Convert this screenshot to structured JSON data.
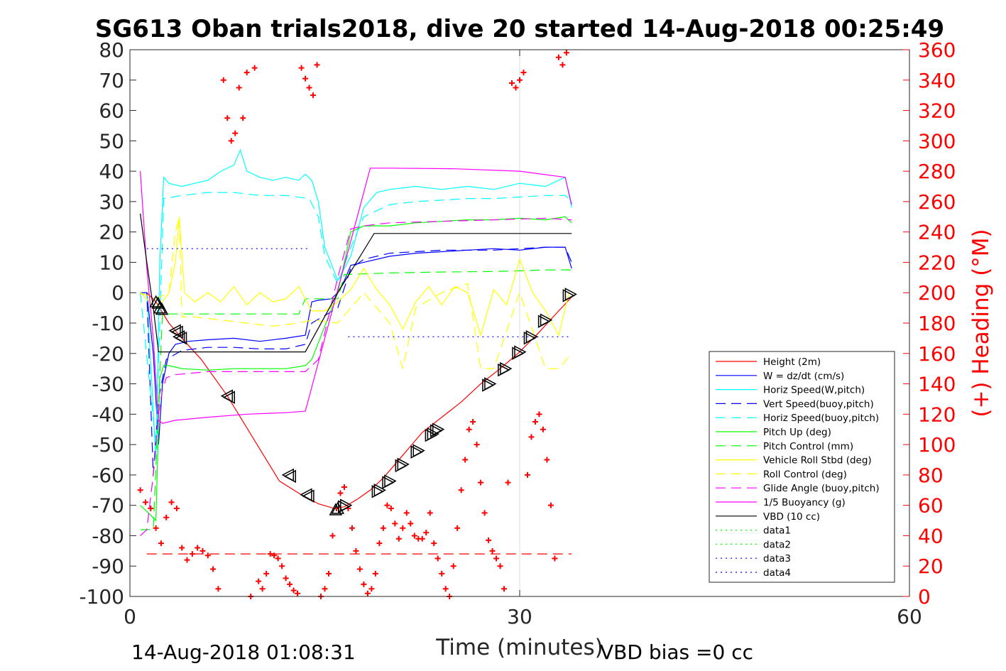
{
  "chart_data": {
    "type": "line",
    "title": "SG613 Oban trials2018, dive 20 started 14-Aug-2018 00:25:49",
    "xlabel": "Time (minutes)",
    "ylabel_right": "(+) Heading (°M)",
    "xlim": [
      0,
      60
    ],
    "ylim": [
      -100,
      80
    ],
    "ylim_right": [
      0,
      360
    ],
    "xticks": [
      "0",
      "30",
      "60"
    ],
    "yticks_left": [
      "80",
      "70",
      "60",
      "50",
      "40",
      "30",
      "20",
      "10",
      "0",
      "-10",
      "-20",
      "-30",
      "-40",
      "-50",
      "-60",
      "-70",
      "-80",
      "-90",
      "-100"
    ],
    "yticks_right": [
      "360",
      "340",
      "320",
      "300",
      "280",
      "260",
      "240",
      "220",
      "200",
      "180",
      "160",
      "140",
      "120",
      "100",
      "80",
      "60",
      "40",
      "20",
      "0"
    ],
    "grid": "vertical line at x=30",
    "legend_position": "lower-right",
    "footer_left": "14-Aug-2018 01:08:31",
    "footer_right": "VBD bias =0 cc",
    "colors": {
      "height": "#ff0000",
      "w": "#0000ff",
      "horiz": "#00ffff",
      "pitch": "#00ff00",
      "roll": "#ffff00",
      "glide": "#ff00ff",
      "buoy": "#ff00ff",
      "vbd": "#000000",
      "heading": "#ff0000",
      "data": "#00ff00",
      "data34": "#0000ff"
    },
    "series": [
      {
        "name": "Height (2m)",
        "style": "solid",
        "color": "#ff0000",
        "x": [
          1.3,
          2,
          3,
          4,
          5.5,
          7.5,
          9.5,
          11.5,
          13,
          14.5,
          15.7,
          16.5,
          17.5,
          18.5,
          19.5,
          20.5,
          21.5,
          22.5,
          24,
          25.5,
          27,
          28.5,
          30,
          31.5,
          33,
          34.1
        ],
        "y": [
          0,
          -3,
          -10,
          -15,
          -22,
          -34,
          -48,
          -62,
          -66,
          -69.5,
          -71,
          -70.5,
          -68,
          -65,
          -61,
          -56,
          -51,
          -46,
          -41,
          -36,
          -30,
          -25,
          -19.5,
          -13,
          -6,
          -1
        ]
      },
      {
        "name": "W = dz/dt (cm/s)",
        "style": "solid",
        "color": "#0000ff",
        "x": [
          0.8,
          1.3,
          1.8,
          2.2,
          2.5,
          3,
          3.5,
          4.5,
          6,
          8,
          10,
          12,
          13.5,
          14,
          14.5,
          15.5,
          16,
          16.5,
          17,
          18,
          20,
          22,
          24,
          26,
          28,
          30,
          32,
          33.5,
          34
        ],
        "y": [
          0,
          0,
          -20,
          -50,
          -30,
          -20,
          -17,
          -16,
          -15.5,
          -15,
          -16,
          -15,
          -14,
          -3,
          -2.5,
          -2,
          0,
          4,
          9,
          10,
          12,
          13,
          13.5,
          14,
          14.5,
          14,
          15,
          15,
          8
        ]
      },
      {
        "name": "Horiz Speed(W,pitch)",
        "style": "solid",
        "color": "#00ffff",
        "x": [
          0.8,
          1.3,
          2,
          2.3,
          2.6,
          3,
          4,
          5,
          6,
          7,
          8,
          8.5,
          9,
          10,
          11,
          12,
          13,
          13.5,
          14,
          14.5,
          15,
          16,
          17,
          18,
          19,
          20,
          22,
          24,
          26,
          28,
          30,
          32,
          33.5,
          34
        ],
        "y": [
          0,
          0,
          -55,
          10,
          38,
          36,
          35,
          36,
          37,
          40,
          42,
          47,
          40,
          38,
          37,
          38,
          37,
          39,
          37,
          30,
          15,
          4,
          12,
          28,
          33,
          34,
          35,
          34,
          35,
          34,
          36,
          35,
          38,
          28
        ]
      },
      {
        "name": "Vert Speed(buoy,pitch)",
        "style": "dash",
        "color": "#0000ff",
        "x": [
          0.8,
          1.3,
          1.8,
          2.2,
          2.8,
          4,
          6,
          8,
          10,
          12,
          13.5,
          14,
          16,
          17,
          18,
          20,
          22,
          24,
          26,
          28,
          30,
          32,
          33.5,
          34
        ],
        "y": [
          0,
          0,
          -60,
          -35,
          -22,
          -19,
          -18,
          -18,
          -18.5,
          -18.5,
          -17,
          -10,
          -5,
          8,
          11,
          13,
          13.5,
          14,
          14,
          14,
          14.5,
          15,
          15,
          10
        ]
      },
      {
        "name": "Horiz Speed(buoy,pitch)",
        "style": "dash",
        "color": "#00ffff",
        "x": [
          0.8,
          2,
          2.6,
          4,
          6,
          8,
          10,
          12,
          13.8,
          14.5,
          15,
          16,
          17,
          18,
          20,
          22,
          24,
          26,
          28,
          30,
          32,
          33.5,
          34
        ],
        "y": [
          0,
          -50,
          31,
          32,
          33,
          33,
          32,
          32,
          31,
          25,
          12,
          3,
          15,
          25,
          29,
          30,
          30.5,
          31,
          31,
          31.5,
          32,
          32,
          30
        ]
      },
      {
        "name": "Pitch Up (deg)",
        "style": "solid",
        "color": "#00ff00",
        "x": [
          0.8,
          1.3,
          2,
          2.3,
          2.6,
          3,
          4,
          6,
          8,
          10,
          12,
          13.5,
          14,
          16,
          17,
          18,
          20,
          22,
          24,
          26,
          28,
          30,
          32,
          33.5,
          34
        ],
        "y": [
          -70,
          -72,
          -75,
          -28,
          -24,
          -24,
          -25,
          -25.5,
          -25,
          -25,
          -25,
          -24,
          -22,
          0,
          20,
          22,
          22,
          23,
          23.5,
          24,
          24,
          24.5,
          24,
          25,
          23
        ]
      },
      {
        "name": "Pitch Control (mm)",
        "style": "dash",
        "color": "#00ff00",
        "x": [
          0.8,
          1.8,
          2.5,
          3,
          6,
          10,
          13,
          13.5,
          16,
          16.5,
          20,
          24,
          28,
          30,
          32,
          34
        ],
        "y": [
          -78,
          -78,
          -7,
          -7,
          -7,
          -7,
          -7,
          -2,
          -2,
          6,
          6.5,
          6.8,
          7,
          7.2,
          7.5,
          7.5
        ]
      },
      {
        "name": "Vehicle Roll Stbd (deg)",
        "style": "solid",
        "color": "#ffff00",
        "x": [
          0.8,
          1.3,
          2,
          2.5,
          3,
          3.5,
          3.8,
          4.2,
          5,
          6,
          7,
          8,
          9,
          10,
          11,
          12,
          13,
          14,
          15,
          16,
          17,
          18,
          19,
          20,
          21,
          22,
          23,
          24,
          25,
          26,
          27,
          28,
          29,
          30,
          31,
          32,
          33,
          33.8
        ],
        "y": [
          0,
          -2,
          -5,
          -3,
          0,
          10,
          25,
          0,
          -3,
          0,
          -3,
          2,
          -4,
          0,
          -3,
          -2,
          2,
          -6,
          -6,
          -3,
          1,
          8,
          1,
          -4,
          -12,
          -3,
          2,
          -4,
          2,
          0,
          -14,
          1,
          -4,
          11,
          0,
          -6,
          -14,
          0
        ]
      },
      {
        "name": "Roll Control (deg)",
        "style": "dash",
        "color": "#ffff00",
        "x": [
          0.8,
          2,
          3,
          3.5,
          3.8,
          4,
          5,
          7,
          9,
          11,
          13,
          14,
          16,
          18,
          19,
          20,
          21,
          22,
          24,
          26,
          27,
          28,
          30,
          32,
          33,
          34
        ],
        "y": [
          0,
          -2,
          0,
          20,
          25,
          -8,
          -8,
          -9,
          -10,
          -11,
          -10,
          -9,
          -10,
          0,
          -5,
          -10,
          -25,
          -5,
          0,
          3,
          -25,
          -25,
          0,
          -25,
          -25,
          -20
        ]
      },
      {
        "name": "Glide Angle (buoy,pitch)",
        "style": "dash",
        "color": "#ff00ff",
        "x": [
          0.8,
          1.3,
          1.8,
          2.2,
          2.5,
          2.8,
          3.5,
          6,
          10,
          13.5,
          14.5,
          16,
          17,
          18,
          20,
          24,
          28,
          32,
          34
        ],
        "y": [
          -80,
          -78,
          -60,
          -40,
          -32,
          -28,
          -27,
          -26,
          -26,
          -26,
          -22,
          5,
          21,
          22,
          23,
          23.5,
          24,
          24.5,
          24
        ]
      },
      {
        "name": "1/5 Buoyancy (g)",
        "style": "solid",
        "color": "#ff00ff",
        "x": [
          0.8,
          1.3,
          1.8,
          2.2,
          2.5,
          3.5,
          6,
          9,
          12,
          13.5,
          18.5,
          20,
          25,
          30,
          33.5,
          34
        ],
        "y": [
          40,
          8,
          -15,
          -42,
          -43,
          -42,
          -41,
          -40,
          -39.5,
          -39,
          41,
          41,
          40.8,
          40,
          38,
          29
        ]
      },
      {
        "name": "VBD (10 cc)",
        "style": "solid",
        "color": "#000000",
        "x": [
          0.8,
          1.3,
          1.8,
          2.2,
          3,
          6,
          10,
          13.5,
          16,
          18.8,
          20,
          25,
          30,
          33,
          34
        ],
        "y": [
          26,
          10,
          -5,
          -19.5,
          -19.5,
          -19.5,
          -19.5,
          -19.5,
          0,
          19.5,
          19.5,
          19.5,
          19.5,
          19.5,
          19.5
        ]
      },
      {
        "name": "data1",
        "style": "dot",
        "color": "#00ff00",
        "x": [],
        "y": []
      },
      {
        "name": "data2",
        "style": "dot",
        "color": "#00ff00",
        "x": [],
        "y": []
      },
      {
        "name": "data3",
        "style": "dot",
        "color": "#0000ff",
        "x": [
          1.3,
          13.8
        ],
        "y": [
          14.5,
          14.5
        ]
      },
      {
        "name": "data4",
        "style": "dot",
        "color": "#0000ff",
        "x": [
          16.8,
          34
        ],
        "y": [
          -14.5,
          -14.5
        ]
      }
    ],
    "heading_dashed_ref": {
      "x": [
        1.3,
        34
      ],
      "y": [
        -86,
        -86
      ]
    },
    "heading_points": {
      "x": [
        0.8,
        1.2,
        1.6,
        2,
        2.4,
        2.8,
        3.2,
        3.6,
        4,
        4.4,
        4.8,
        5.2,
        5.6,
        6,
        6.4,
        6.8,
        7.2,
        7.5,
        7.8,
        8.1,
        8.4,
        8.7,
        9,
        9.3,
        9.6,
        9.9,
        10.2,
        10.5,
        10.8,
        11.1,
        11.4,
        11.7,
        12,
        12.3,
        12.6,
        12.9,
        13.2,
        13.5,
        13.8,
        14.1,
        14.4,
        14.7,
        15,
        15.3,
        15.6,
        15.9,
        16.2,
        16.5,
        16.8,
        17.1,
        17.4,
        17.7,
        18,
        18.3,
        18.6,
        18.9,
        19.2,
        19.5,
        19.8,
        20.1,
        20.4,
        20.7,
        21,
        21.3,
        21.6,
        21.9,
        22.2,
        22.5,
        22.8,
        23.1,
        23.4,
        23.7,
        24,
        24.3,
        24.6,
        24.9,
        25.2,
        25.5,
        25.8,
        26.1,
        26.4,
        26.7,
        27,
        27.3,
        27.6,
        27.9,
        28.2,
        28.5,
        28.8,
        29.1,
        29.4,
        29.7,
        30,
        30.3,
        30.6,
        30.9,
        31.2,
        31.5,
        31.8,
        32.1,
        32.4,
        32.7,
        33,
        33.3,
        33.6
      ],
      "y": [
        70,
        62,
        58,
        45,
        35,
        52,
        62,
        58,
        32,
        24,
        28,
        32,
        30,
        27,
        18,
        5,
        340,
        315,
        300,
        305,
        335,
        315,
        345,
        0,
        348,
        10,
        5,
        15,
        28,
        27,
        25,
        20,
        12,
        8,
        4,
        2,
        348,
        341,
        335,
        330,
        350,
        0,
        5,
        15,
        40,
        58,
        68,
        72,
        58,
        45,
        30,
        18,
        8,
        2,
        5,
        15,
        35,
        45,
        60,
        58,
        48,
        38,
        45,
        55,
        48,
        40,
        38,
        38,
        42,
        55,
        35,
        25,
        15,
        5,
        0,
        20,
        45,
        70,
        90,
        110,
        115,
        100,
        75,
        55,
        37,
        30,
        25,
        20,
        5,
        75,
        338,
        335,
        340,
        345,
        80,
        105,
        115,
        120,
        110,
        90,
        60,
        25,
        355,
        350,
        358
      ]
    },
    "markers_down": {
      "x": [
        2.0,
        2.3,
        3.5,
        3.8,
        7.5,
        12.2,
        13.6
      ],
      "y": [
        -3,
        -5,
        -12.5,
        -14.5,
        -34,
        -60,
        -66.5
      ]
    },
    "markers_up": {
      "x": [
        16.0,
        16.6,
        19.2,
        20.0,
        21.0,
        22.2,
        23.3,
        23.7,
        27.7,
        28.9,
        30.0,
        30.9,
        32.0,
        33.9
      ],
      "y": [
        -71,
        -70,
        -65,
        -62,
        -56.5,
        -52,
        -46.5,
        -45,
        -30,
        -25,
        -19.5,
        -14.5,
        -9,
        -0.5
      ]
    }
  }
}
